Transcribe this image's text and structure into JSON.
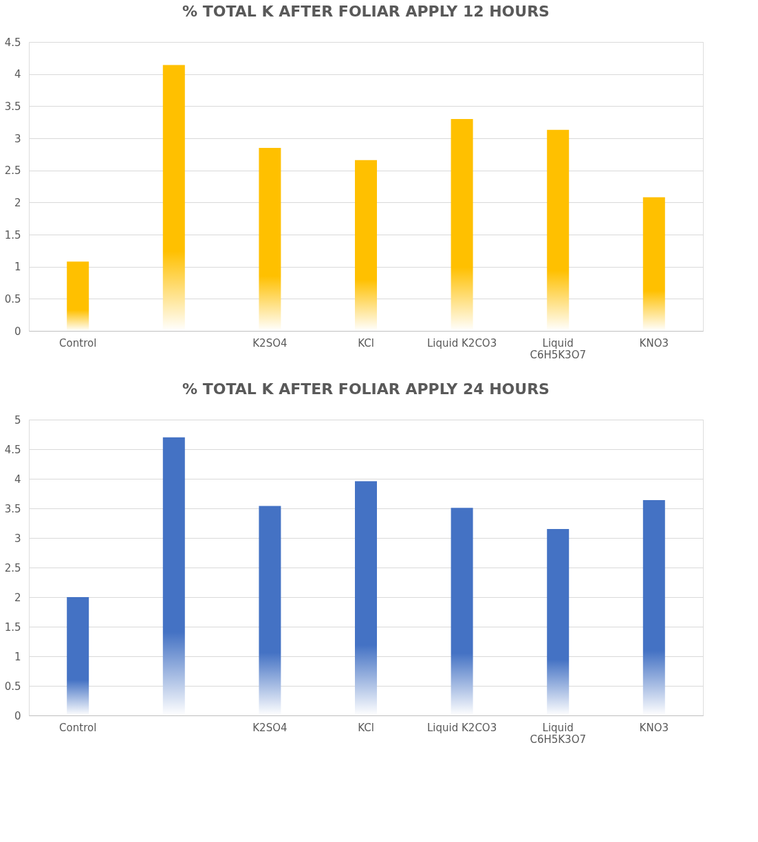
{
  "chart_data": [
    {
      "type": "bar",
      "title": "% TOTAL K AFTER FOLIAR APPLY 12 HOURS",
      "categories": [
        "Control",
        null,
        "K2SO4",
        "KCl",
        "Liquid K2CO3",
        "Liquid C6H5K3O7",
        "KNO3"
      ],
      "values": [
        1.08,
        4.14,
        2.85,
        2.66,
        3.3,
        3.13,
        2.08
      ],
      "color": "#ffc000",
      "ylim": [
        0,
        4.5
      ],
      "yticks": [
        0,
        0.5,
        1,
        1.5,
        2,
        2.5,
        3,
        3.5,
        4,
        4.5
      ],
      "grid": "y"
    },
    {
      "type": "bar",
      "title": "% TOTAL K AFTER FOLIAR APPLY 24 HOURS",
      "categories": [
        "Control",
        null,
        "K2SO4",
        "KCl",
        "Liquid K2CO3",
        "Liquid C6H5K3O7",
        "KNO3"
      ],
      "values": [
        2.0,
        4.7,
        3.54,
        3.96,
        3.51,
        3.15,
        3.64
      ],
      "color": "#4472c4",
      "ylim": [
        0,
        5
      ],
      "yticks": [
        0,
        0.5,
        1,
        1.5,
        2,
        2.5,
        3,
        3.5,
        4,
        4.5,
        5
      ],
      "grid": "y"
    }
  ]
}
